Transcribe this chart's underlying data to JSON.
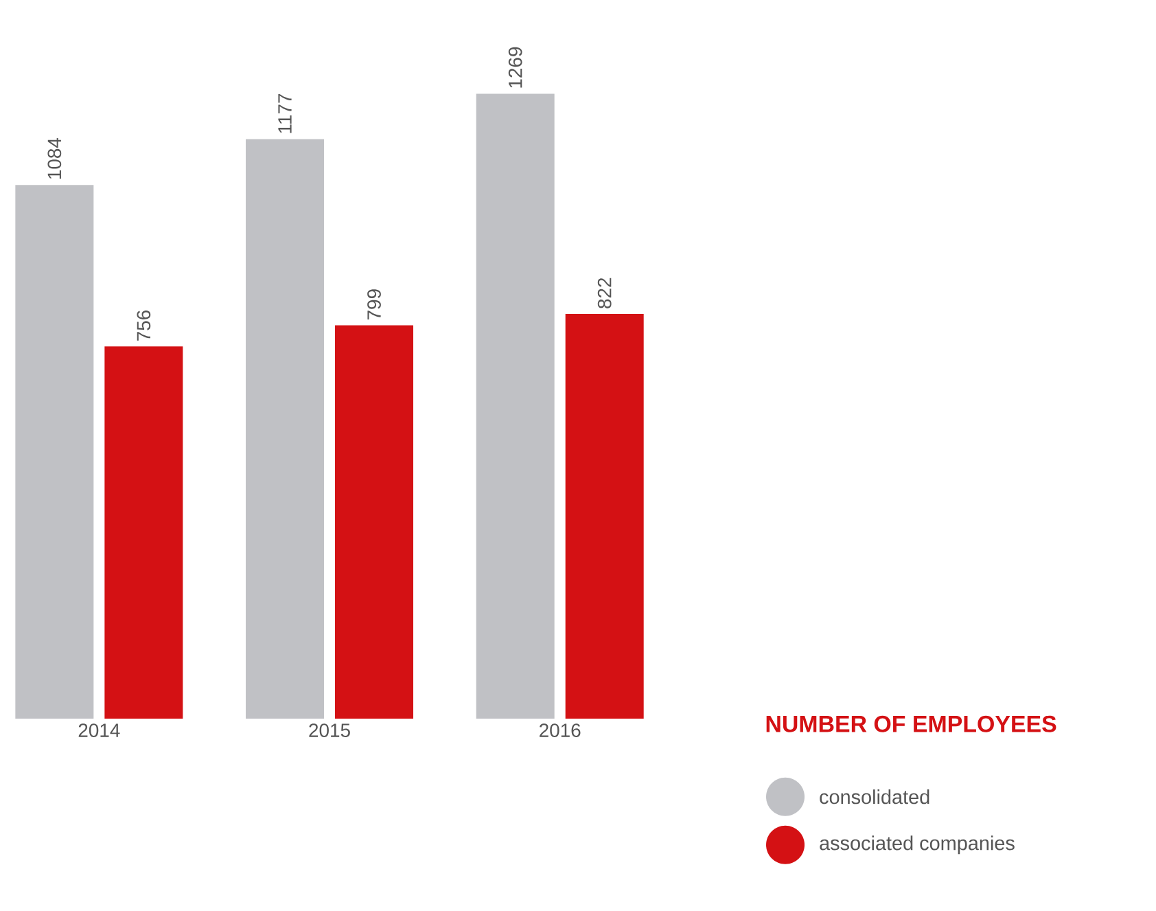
{
  "chart_data": {
    "type": "bar",
    "categories": [
      "2014",
      "2015",
      "2016"
    ],
    "series": [
      {
        "name": "consolidated",
        "color": "#c0c1c5",
        "values": [
          1084,
          1177,
          1269
        ]
      },
      {
        "name": "associated companies",
        "color": "#d41114",
        "values": [
          756,
          799,
          822
        ]
      }
    ],
    "legend_title": "NUMBER OF EMPLOYEES",
    "legend": "bottom right",
    "data_labels": true
  }
}
